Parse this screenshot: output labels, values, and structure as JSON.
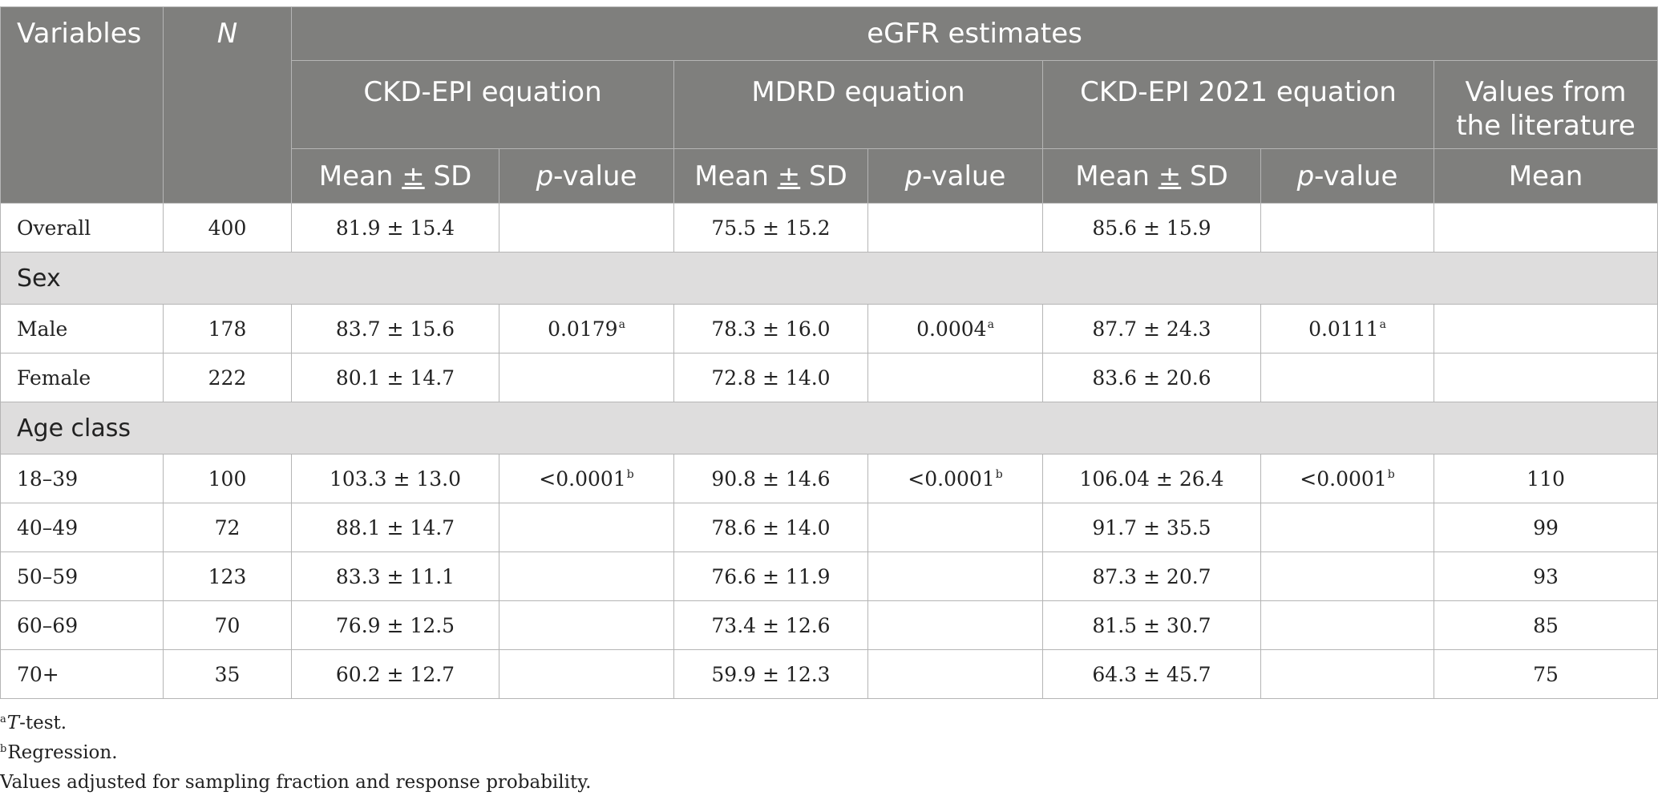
{
  "table": {
    "headers": {
      "variables": "Variables",
      "n": "N",
      "egfr_estimates": "eGFR estimates",
      "ckd_epi": "CKD-EPI equation",
      "mdrd": "MDRD equation",
      "ckd_epi_2021": "CKD-EPI 2021 equation",
      "literature_line1": "Values from",
      "literature_line2": "the literature",
      "mean_sd_prefix": "Mean ",
      "pm_symbol": "±",
      "mean_sd_suffix": " SD",
      "p_italic": "p",
      "p_suffix": "-value",
      "mean": "Mean"
    },
    "overall": {
      "label": "Overall",
      "n": "400",
      "ckd_epi": "81.9 ± 15.4",
      "mdrd": "75.5 ± 15.2",
      "ckd_epi_2021": "85.6 ± 15.9"
    },
    "sex_section": "Sex",
    "sex_rows": [
      {
        "label": "Male",
        "n": "178",
        "ckd_epi": "83.7 ± 15.6",
        "ckd_epi_p": "0.0179",
        "ckd_epi_p_sup": "a",
        "mdrd": "78.3 ± 16.0",
        "mdrd_p": "0.0004",
        "mdrd_p_sup": "a",
        "ckd_epi_2021": "87.7 ± 24.3",
        "ckd_epi_2021_p": "0.0111",
        "ckd_epi_2021_p_sup": "a",
        "literature": ""
      },
      {
        "label": "Female",
        "n": "222",
        "ckd_epi": "80.1 ± 14.7",
        "ckd_epi_p": "",
        "ckd_epi_p_sup": "",
        "mdrd": "72.8 ± 14.0",
        "mdrd_p": "",
        "mdrd_p_sup": "",
        "ckd_epi_2021": "83.6 ± 20.6",
        "ckd_epi_2021_p": "",
        "ckd_epi_2021_p_sup": "",
        "literature": ""
      }
    ],
    "age_section": "Age class",
    "age_rows": [
      {
        "label": "18–39",
        "n": "100",
        "ckd_epi": "103.3 ± 13.0",
        "ckd_epi_p": "<0.0001",
        "ckd_epi_p_sup": "b",
        "mdrd": "90.8 ± 14.6",
        "mdrd_p": "<0.0001",
        "mdrd_p_sup": "b",
        "ckd_epi_2021": "106.04 ± 26.4",
        "ckd_epi_2021_p": "<0.0001",
        "ckd_epi_2021_p_sup": "b",
        "literature": "110"
      },
      {
        "label": "40–49",
        "n": "72",
        "ckd_epi": "88.1 ± 14.7",
        "ckd_epi_p": "",
        "ckd_epi_p_sup": "",
        "mdrd": "78.6 ± 14.0",
        "mdrd_p": "",
        "mdrd_p_sup": "",
        "ckd_epi_2021": "91.7 ± 35.5",
        "ckd_epi_2021_p": "",
        "ckd_epi_2021_p_sup": "",
        "literature": "99"
      },
      {
        "label": "50–59",
        "n": "123",
        "ckd_epi": "83.3 ± 11.1",
        "ckd_epi_p": "",
        "ckd_epi_p_sup": "",
        "mdrd": "76.6 ± 11.9",
        "mdrd_p": "",
        "mdrd_p_sup": "",
        "ckd_epi_2021": "87.3 ± 20.7",
        "ckd_epi_2021_p": "",
        "ckd_epi_2021_p_sup": "",
        "literature": "93"
      },
      {
        "label": "60–69",
        "n": "70",
        "ckd_epi": "76.9 ± 12.5",
        "ckd_epi_p": "",
        "ckd_epi_p_sup": "",
        "mdrd": "73.4 ± 12.6",
        "mdrd_p": "",
        "mdrd_p_sup": "",
        "ckd_epi_2021": "81.5 ± 30.7",
        "ckd_epi_2021_p": "",
        "ckd_epi_2021_p_sup": "",
        "literature": "85"
      },
      {
        "label": "70+",
        "n": "35",
        "ckd_epi": "60.2 ± 12.7",
        "ckd_epi_p": "",
        "ckd_epi_p_sup": "",
        "mdrd": "59.9 ± 12.3",
        "mdrd_p": "",
        "mdrd_p_sup": "",
        "ckd_epi_2021": "64.3 ± 45.7",
        "ckd_epi_2021_p": "",
        "ckd_epi_2021_p_sup": "",
        "literature": "75"
      }
    ]
  },
  "footnotes": {
    "a_marker": "a",
    "a_text_italic": "T",
    "a_text_rest": "-test.",
    "b_marker": "b",
    "b_text": "Regression.",
    "adjusted_note": "Values adjusted for sampling fraction and response probability."
  },
  "colors": {
    "header_bg": "#7f7f7d",
    "section_bg": "#dedddd",
    "border": "#b5b5b5",
    "text": "#222222"
  }
}
